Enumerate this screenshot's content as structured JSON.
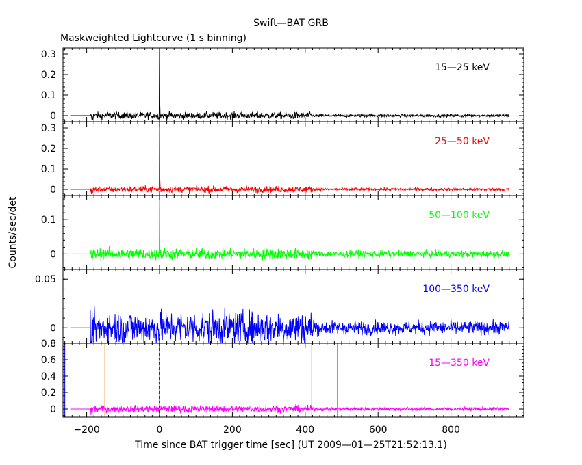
{
  "title": "Swift—BAT GRB",
  "subtitle": "Maskweighted Lightcurve (1 s binning)",
  "xlabel": "Time since BAT trigger time [sec] (UT 2009—01—25T21:52:13.1)",
  "ylabel": "Counts/sec/det",
  "chart_data": {
    "type": "line",
    "title": "Swift—BAT GRB",
    "subtitle": "Maskweighted Lightcurve (1 s binning)",
    "xlabel": "Time since BAT trigger time [sec] (UT 2009—01—25T21:52:13.1)",
    "ylabel": "Counts/sec/det",
    "xlim": [
      -265,
      1000
    ],
    "x_ticks": [
      -200,
      0,
      200,
      400,
      600,
      800
    ],
    "x_tick_labels": [
      "−200",
      "0",
      "200",
      "400",
      "600",
      "800"
    ],
    "data_range_x": [
      -190,
      960
    ],
    "flat_range_x": [
      -245,
      -190
    ],
    "trigger_time": 0,
    "panels": [
      {
        "band": "15—25 keV",
        "color": "#000000",
        "ylim": [
          -0.03,
          0.33
        ],
        "y_ticks": [
          0,
          0.1,
          0.2,
          0.3
        ],
        "y_tick_labels": [
          "0",
          "0.1",
          "0.2",
          "0.3"
        ],
        "noise_early": 0.012,
        "noise_late": 0.005,
        "noise_change_x": 420,
        "spike_peak": 0.33
      },
      {
        "band": "25—50 keV",
        "color": "#ff0000",
        "ylim": [
          -0.03,
          0.33
        ],
        "y_ticks": [
          0,
          0.1,
          0.2,
          0.3
        ],
        "y_tick_labels": [
          "0",
          "0.1",
          "0.2",
          "0.3"
        ],
        "noise_early": 0.011,
        "noise_late": 0.005,
        "noise_change_x": 420,
        "spike_peak": 0.33
      },
      {
        "band": "50—100 keV",
        "color": "#00ff00",
        "ylim": [
          -0.045,
          0.17
        ],
        "y_ticks": [
          0,
          0.1
        ],
        "y_tick_labels": [
          "0",
          "0.1"
        ],
        "noise_early": 0.012,
        "noise_late": 0.007,
        "noise_change_x": 420,
        "spike_peak": 0.17
      },
      {
        "band": "100—350 keV",
        "color": "#0000ff",
        "ylim": [
          -0.016,
          0.06
        ],
        "y_ticks": [
          0,
          0.05
        ],
        "y_tick_labels": [
          "0",
          "0.05"
        ],
        "noise_early": 0.012,
        "noise_late": 0.005,
        "noise_change_x": 430,
        "spike_peak": 0.0
      },
      {
        "band": "15—350 keV",
        "color": "#ff00ff",
        "ylim": [
          -0.1,
          0.8
        ],
        "y_ticks": [
          0,
          0.2,
          0.4,
          0.6,
          0.8
        ],
        "y_tick_labels": [
          "0",
          "0.2",
          "0.4",
          "0.6",
          "0.8"
        ],
        "noise_early": 0.03,
        "noise_late": 0.015,
        "noise_change_x": 420,
        "spike_peak": 0.0
      }
    ],
    "markers_last_panel": [
      {
        "x": -260,
        "color": "#0000ff",
        "style": "solid"
      },
      {
        "x": -150,
        "color": "#e08000",
        "style": "solid"
      },
      {
        "x": 0,
        "color": "#00c000",
        "style": "solid"
      },
      {
        "x": 0,
        "color": "#000000",
        "style": "dashed"
      },
      {
        "x": 418,
        "color": "#0000ff",
        "style": "solid"
      },
      {
        "x": 488,
        "color": "#e08000",
        "style": "solid"
      }
    ]
  }
}
